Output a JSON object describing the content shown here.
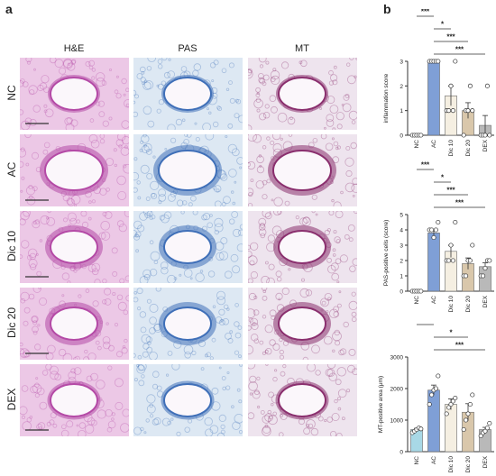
{
  "panel_a": {
    "letter": "a",
    "columns": [
      "H&E",
      "PAS",
      "MT"
    ],
    "rows": [
      "NC",
      "AC",
      "Dic 10",
      "Dic 20",
      "DEX"
    ]
  },
  "panel_b": {
    "letter": "b"
  },
  "colors": {
    "NC": "#a8d8e6",
    "AC": "#7f9fd6",
    "Dic 10": "#f5efe2",
    "Dic 20": "#d9c7ab",
    "DEX": "#b9b9b9",
    "he_bg": "#ecc8e6",
    "he_tissue": "#b44aa6",
    "pas_bg": "#dde8f3",
    "pas_tissue": "#3f6fb8",
    "mt_bg": "#eee4ee",
    "mt_tissue": "#8a2f6e"
  },
  "chart_data": [
    {
      "type": "bar",
      "categories": [
        "NC",
        "AC",
        "Dic 10",
        "Dic 20",
        "DEX"
      ],
      "values": [
        0,
        3,
        1.6,
        1.0,
        0.4
      ],
      "errors": [
        0,
        0,
        0.4,
        0.32,
        0.4
      ],
      "points": [
        [
          0,
          0,
          0,
          0,
          0
        ],
        [
          3,
          3,
          3,
          3,
          3
        ],
        [
          1,
          1,
          2,
          1,
          3
        ],
        [
          0,
          1,
          1,
          2,
          1
        ],
        [
          0,
          0,
          0,
          2,
          0
        ]
      ],
      "ylabel": "inflammation score",
      "ylim": [
        0,
        3
      ],
      "yticks": [
        0,
        1,
        2,
        3
      ],
      "significance": [
        {
          "from": "NC",
          "to": "AC",
          "label": "***"
        },
        {
          "from": "AC",
          "to": "Dic 10",
          "label": "*"
        },
        {
          "from": "AC",
          "to": "Dic 20",
          "label": "***"
        },
        {
          "from": "AC",
          "to": "DEX",
          "label": "***"
        }
      ]
    },
    {
      "type": "bar",
      "categories": [
        "NC",
        "AC",
        "Dic 10",
        "Dic 20",
        "DEX"
      ],
      "values": [
        0,
        3.8,
        2.6,
        1.8,
        1.6
      ],
      "errors": [
        0,
        0.2,
        0.4,
        0.37,
        0.25
      ],
      "points": [
        [
          0,
          0,
          0,
          0,
          0
        ],
        [
          4,
          4,
          3.5,
          4,
          4.5
        ],
        [
          2,
          2,
          3,
          2,
          4.5
        ],
        [
          1,
          1,
          2,
          2,
          3
        ],
        [
          1,
          1,
          1.5,
          2,
          2
        ]
      ],
      "ylabel": "PAS-positive cells (score)",
      "ylim": [
        0,
        5
      ],
      "yticks": [
        0,
        1,
        2,
        3,
        4,
        5
      ],
      "significance": [
        {
          "from": "NC",
          "to": "AC",
          "label": "***"
        },
        {
          "from": "AC",
          "to": "Dic 10",
          "label": "*"
        },
        {
          "from": "AC",
          "to": "Dic 20",
          "label": "***"
        },
        {
          "from": "AC",
          "to": "DEX",
          "label": "***"
        }
      ]
    },
    {
      "type": "bar",
      "categories": [
        "NC",
        "AC",
        "Dic 10",
        "Dic 20",
        "DEX"
      ],
      "values": [
        700,
        1950,
        1500,
        1250,
        700
      ],
      "errors": [
        40,
        160,
        170,
        270,
        70
      ],
      "points": [
        [
          600,
          650,
          700,
          750,
          720
        ],
        [
          1500,
          1800,
          1950,
          2000,
          2400
        ],
        [
          1200,
          1400,
          1500,
          1600,
          1700
        ],
        [
          700,
          1000,
          1200,
          1500,
          1800
        ],
        [
          500,
          600,
          650,
          750,
          900
        ]
      ],
      "ylabel": "MT-positive area (μm)",
      "ylim": [
        0,
        3000
      ],
      "yticks": [
        0,
        1000,
        2000,
        3000
      ],
      "significance": [
        {
          "from": "NC",
          "to": "AC",
          "label": "***"
        },
        {
          "from": "AC",
          "to": "Dic 20",
          "label": "*"
        },
        {
          "from": "AC",
          "to": "DEX",
          "label": "***"
        }
      ]
    }
  ]
}
